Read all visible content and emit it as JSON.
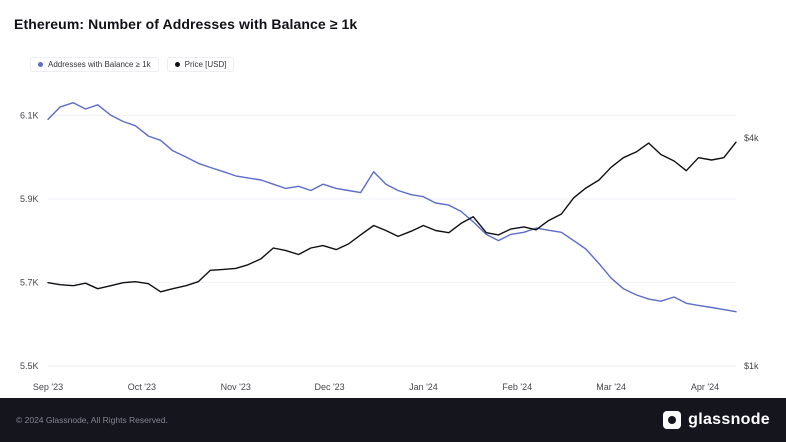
{
  "page": {
    "title": "Ethereum: Number of Addresses with Balance ≥ 1k"
  },
  "legend": {
    "items": [
      {
        "label": "Addresses with Balance ≥ 1k",
        "color": "#5b6dc8"
      },
      {
        "label": "Price [USD]",
        "color": "#101014"
      }
    ]
  },
  "footer": {
    "copyright": "© 2024 Glassnode, All Rights Reserved.",
    "brand": "glassnode"
  },
  "chart_data": {
    "type": "line",
    "title": "Ethereum: Number of Addresses with Balance ≥ 1k",
    "x_unit": "months since Sep 2023",
    "legend_position": "top-left",
    "grid": "horizontal-faint",
    "x": [
      0,
      0.13,
      0.27,
      0.4,
      0.53,
      0.67,
      0.8,
      0.93,
      1.07,
      1.2,
      1.33,
      1.47,
      1.6,
      1.73,
      1.87,
      2,
      2.13,
      2.27,
      2.4,
      2.53,
      2.67,
      2.8,
      2.93,
      3.07,
      3.2,
      3.33,
      3.47,
      3.6,
      3.73,
      3.87,
      4,
      4.13,
      4.27,
      4.4,
      4.53,
      4.67,
      4.8,
      4.93,
      5.07,
      5.2,
      5.33,
      5.47,
      5.6,
      5.73,
      5.87,
      6,
      6.13,
      6.27,
      6.4,
      6.53,
      6.67,
      6.8,
      6.93,
      7.07,
      7.2,
      7.33
    ],
    "x_ticks": [
      {
        "label": "Sep '23",
        "value": 0
      },
      {
        "label": "Oct '23",
        "value": 1
      },
      {
        "label": "Nov '23",
        "value": 2
      },
      {
        "label": "Dec '23",
        "value": 3
      },
      {
        "label": "Jan '24",
        "value": 4
      },
      {
        "label": "Feb '24",
        "value": 5
      },
      {
        "label": "Mar '24",
        "value": 6
      },
      {
        "label": "Apr '24",
        "value": 7
      }
    ],
    "left_axis": {
      "label": "Addresses with Balance ≥ 1k",
      "scale": "linear",
      "min": 5.5,
      "max": 6.17,
      "ticks": [
        {
          "label": "6.1K",
          "value": 6.1
        },
        {
          "label": "5.9K",
          "value": 5.9
        },
        {
          "label": "5.7K",
          "value": 5.7
        },
        {
          "label": "5.5K",
          "value": 5.5
        }
      ]
    },
    "right_axis": {
      "label": "Price [USD]",
      "scale": "log",
      "min": 1,
      "max": 5.49,
      "ticks": [
        {
          "label": "$4k",
          "value": 4
        },
        {
          "label": "$1k",
          "value": 1
        }
      ]
    },
    "series": [
      {
        "name": "Addresses with Balance ≥ 1k",
        "axis": "left",
        "color": "#5b6dc8",
        "unit": "K addresses",
        "values": [
          6.09,
          6.12,
          6.13,
          6.115,
          6.125,
          6.1,
          6.085,
          6.075,
          6.05,
          6.04,
          6.015,
          6.0,
          5.985,
          5.975,
          5.965,
          5.955,
          5.95,
          5.945,
          5.935,
          5.925,
          5.93,
          5.92,
          5.935,
          5.925,
          5.92,
          5.915,
          5.965,
          5.935,
          5.92,
          5.91,
          5.905,
          5.89,
          5.885,
          5.87,
          5.845,
          5.815,
          5.8,
          5.815,
          5.82,
          5.83,
          5.825,
          5.82,
          5.8,
          5.78,
          5.745,
          5.71,
          5.685,
          5.67,
          5.66,
          5.655,
          5.665,
          5.65,
          5.645,
          5.64,
          5.635,
          5.63
        ]
      },
      {
        "name": "Price [USD]",
        "axis": "right",
        "color": "#101014",
        "unit": "$k",
        "values": [
          1.66,
          1.64,
          1.63,
          1.655,
          1.6,
          1.63,
          1.66,
          1.67,
          1.65,
          1.57,
          1.6,
          1.63,
          1.67,
          1.79,
          1.8,
          1.81,
          1.85,
          1.92,
          2.05,
          2.02,
          1.97,
          2.05,
          2.08,
          2.03,
          2.1,
          2.22,
          2.35,
          2.28,
          2.2,
          2.27,
          2.35,
          2.28,
          2.25,
          2.38,
          2.48,
          2.25,
          2.22,
          2.3,
          2.33,
          2.29,
          2.42,
          2.52,
          2.78,
          2.95,
          3.1,
          3.35,
          3.55,
          3.68,
          3.88,
          3.62,
          3.48,
          3.28,
          3.55,
          3.5,
          3.55,
          3.9
        ]
      }
    ]
  }
}
